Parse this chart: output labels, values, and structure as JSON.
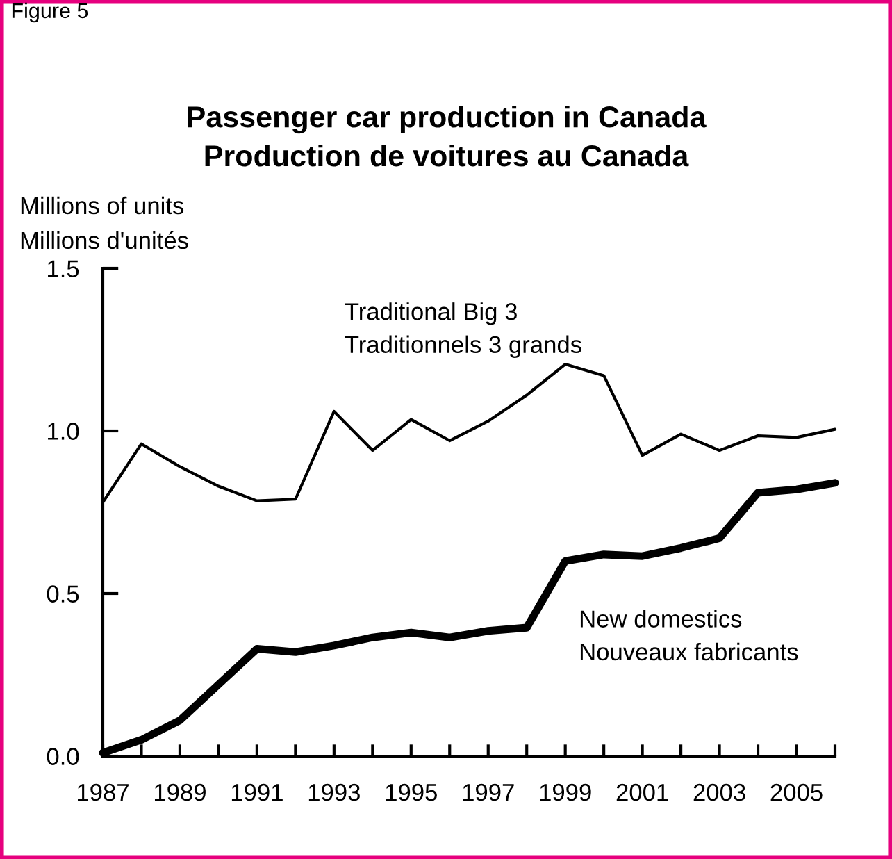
{
  "chart_data": {
    "type": "line",
    "title": "Passenger car production in Canada\nProduction de voitures au Canada",
    "ylabel": "Millions of units\nMillions d'unités",
    "annotations": [
      "Figure 5"
    ],
    "x": [
      1987,
      1988,
      1989,
      1990,
      1991,
      1992,
      1993,
      1994,
      1995,
      1996,
      1997,
      1998,
      1999,
      2000,
      2001,
      2002,
      2003,
      2004,
      2005,
      2006
    ],
    "series": [
      {
        "name": "Traditional Big 3\nTraditionnels 3 grands",
        "color": "#000000",
        "values": [
          0.78,
          0.96,
          0.89,
          0.83,
          0.785,
          0.79,
          1.06,
          0.94,
          1.035,
          0.97,
          1.03,
          1.11,
          1.205,
          1.17,
          0.925,
          0.99,
          0.94,
          0.985,
          0.98,
          1.005
        ]
      },
      {
        "name": "New domestics\nNouveaux fabricants",
        "color": "#000000",
        "values": [
          0.01,
          0.05,
          0.11,
          0.22,
          0.33,
          0.32,
          0.34,
          0.365,
          0.38,
          0.365,
          0.385,
          0.395,
          0.6,
          0.62,
          0.615,
          0.64,
          0.67,
          0.81,
          0.82,
          0.84
        ]
      }
    ],
    "xlim": [
      1987,
      2006
    ],
    "xticks": [
      1987,
      {
        "value": 1988,
        "label": null
      },
      1989,
      {
        "value": 1990,
        "label": null
      },
      1991,
      {
        "value": 1992,
        "label": null
      },
      1993,
      {
        "value": 1994,
        "label": null
      },
      1995,
      {
        "value": 1996,
        "label": null
      },
      1997,
      {
        "value": 1998,
        "label": null
      },
      1999,
      {
        "value": 2000,
        "label": null
      },
      2001,
      {
        "value": 2002,
        "label": null
      },
      2003,
      {
        "value": 2004,
        "label": null
      },
      2005,
      {
        "value": 2006,
        "label": null
      }
    ],
    "ylim": [
      0,
      1.5
    ],
    "yticks": [
      {
        "value": 0,
        "label": "0.0"
      },
      {
        "value": 0.5,
        "label": "0.5"
      },
      {
        "value": 1.0,
        "label": "1.0"
      },
      {
        "value": 1.5,
        "label": "1.5"
      }
    ],
    "grid": false,
    "legend": false,
    "marker": "none",
    "line_style": "solid"
  }
}
